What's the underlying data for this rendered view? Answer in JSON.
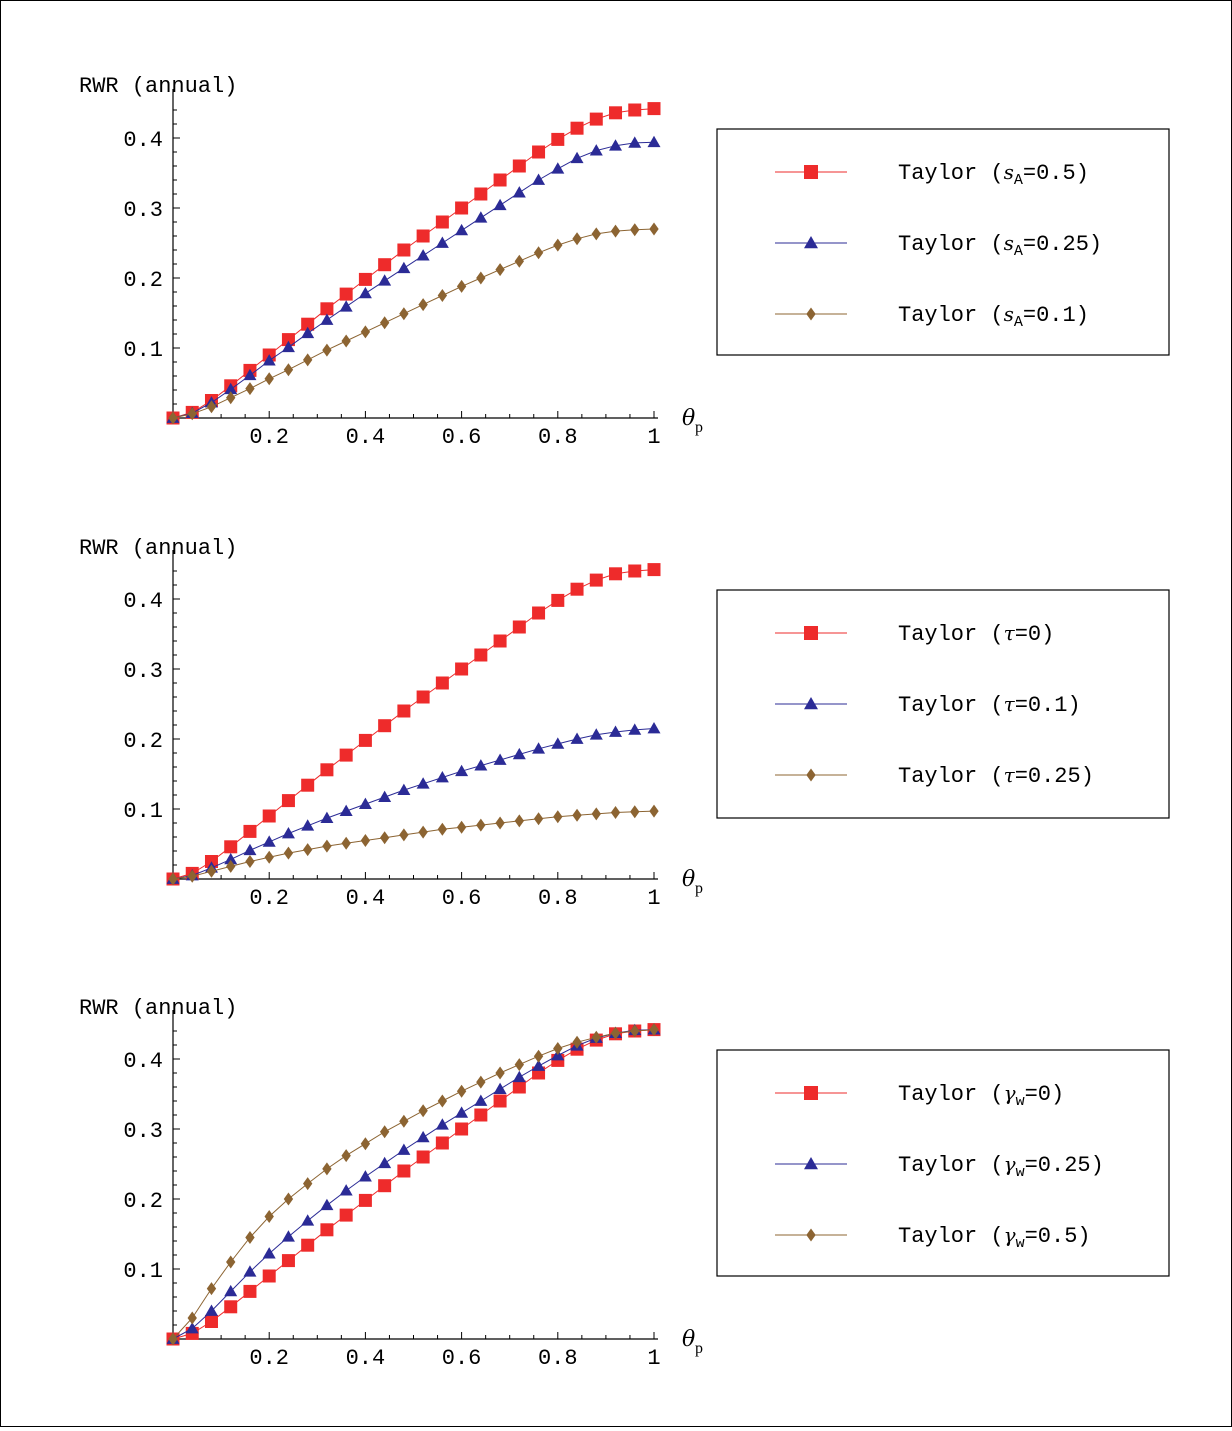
{
  "colors": {
    "series": [
      "#ee2b2b",
      "#2b2b96",
      "#8c6432"
    ],
    "axis": "#000000"
  },
  "markers": [
    "square",
    "triangle",
    "diamond"
  ],
  "chart_data": [
    {
      "type": "line",
      "ylabel": "RWR (annual)",
      "xlabel_symbol": "θ",
      "xlabel_sub": "p",
      "xlim": [
        0,
        1
      ],
      "ylim": [
        0,
        0.45
      ],
      "xticks": [
        "0.2",
        "0.4",
        "0.6",
        "0.8",
        "1"
      ],
      "yticks": [
        "0.1",
        "0.2",
        "0.3",
        "0.4"
      ],
      "x": [
        0,
        0.04,
        0.08,
        0.12,
        0.16,
        0.2,
        0.24,
        0.28,
        0.32,
        0.36,
        0.4,
        0.44,
        0.48,
        0.52,
        0.56,
        0.6,
        0.64,
        0.68,
        0.72,
        0.76,
        0.8,
        0.84,
        0.88,
        0.92,
        0.96,
        1.0
      ],
      "series": [
        {
          "legend_prefix": "Taylor (",
          "legend_symbol": "s",
          "legend_sub": "A",
          "legend_suffix": "=0.5)",
          "values": [
            0,
            0.008,
            0.025,
            0.046,
            0.068,
            0.09,
            0.112,
            0.134,
            0.156,
            0.177,
            0.198,
            0.219,
            0.24,
            0.26,
            0.28,
            0.3,
            0.32,
            0.34,
            0.36,
            0.38,
            0.398,
            0.414,
            0.427,
            0.436,
            0.44,
            0.442
          ]
        },
        {
          "legend_prefix": "Taylor (",
          "legend_symbol": "s",
          "legend_sub": "A",
          "legend_suffix": "=0.25)",
          "values": [
            0,
            0.007,
            0.022,
            0.041,
            0.061,
            0.082,
            0.101,
            0.121,
            0.14,
            0.159,
            0.178,
            0.196,
            0.214,
            0.232,
            0.25,
            0.268,
            0.286,
            0.304,
            0.322,
            0.34,
            0.356,
            0.371,
            0.382,
            0.389,
            0.393,
            0.394
          ]
        },
        {
          "legend_prefix": "Taylor (",
          "legend_symbol": "s",
          "legend_sub": "A",
          "legend_suffix": "=0.1)",
          "values": [
            0,
            0.006,
            0.016,
            0.029,
            0.042,
            0.056,
            0.069,
            0.083,
            0.097,
            0.11,
            0.123,
            0.136,
            0.149,
            0.162,
            0.175,
            0.188,
            0.2,
            0.212,
            0.224,
            0.236,
            0.247,
            0.256,
            0.263,
            0.267,
            0.269,
            0.27
          ]
        }
      ]
    },
    {
      "type": "line",
      "ylabel": "RWR (annual)",
      "xlabel_symbol": "θ",
      "xlabel_sub": "p",
      "xlim": [
        0,
        1
      ],
      "ylim": [
        0,
        0.45
      ],
      "xticks": [
        "0.2",
        "0.4",
        "0.6",
        "0.8",
        "1"
      ],
      "yticks": [
        "0.1",
        "0.2",
        "0.3",
        "0.4"
      ],
      "x": [
        0,
        0.04,
        0.08,
        0.12,
        0.16,
        0.2,
        0.24,
        0.28,
        0.32,
        0.36,
        0.4,
        0.44,
        0.48,
        0.52,
        0.56,
        0.6,
        0.64,
        0.68,
        0.72,
        0.76,
        0.8,
        0.84,
        0.88,
        0.92,
        0.96,
        1.0
      ],
      "series": [
        {
          "legend_prefix": "Taylor (",
          "legend_symbol": "τ",
          "legend_sub": "",
          "legend_suffix": "=0)",
          "values": [
            0,
            0.008,
            0.025,
            0.046,
            0.068,
            0.09,
            0.112,
            0.134,
            0.156,
            0.177,
            0.198,
            0.219,
            0.24,
            0.26,
            0.28,
            0.3,
            0.32,
            0.34,
            0.36,
            0.38,
            0.398,
            0.414,
            0.427,
            0.436,
            0.44,
            0.442
          ]
        },
        {
          "legend_prefix": "Taylor (",
          "legend_symbol": "τ",
          "legend_sub": "",
          "legend_suffix": "=0.1)",
          "values": [
            0,
            0.005,
            0.016,
            0.028,
            0.041,
            0.053,
            0.065,
            0.076,
            0.087,
            0.097,
            0.107,
            0.117,
            0.127,
            0.136,
            0.145,
            0.154,
            0.162,
            0.17,
            0.178,
            0.186,
            0.193,
            0.2,
            0.206,
            0.21,
            0.213,
            0.215
          ]
        },
        {
          "legend_prefix": "Taylor (",
          "legend_symbol": "τ",
          "legend_sub": "",
          "legend_suffix": "=0.25)",
          "values": [
            0,
            0.004,
            0.011,
            0.018,
            0.025,
            0.031,
            0.037,
            0.042,
            0.047,
            0.051,
            0.055,
            0.059,
            0.063,
            0.067,
            0.071,
            0.074,
            0.077,
            0.08,
            0.083,
            0.086,
            0.089,
            0.091,
            0.093,
            0.095,
            0.096,
            0.097
          ]
        }
      ]
    },
    {
      "type": "line",
      "ylabel": "RWR (annual)",
      "xlabel_symbol": "θ",
      "xlabel_sub": "p",
      "xlim": [
        0,
        1
      ],
      "ylim": [
        0,
        0.45
      ],
      "xticks": [
        "0.2",
        "0.4",
        "0.6",
        "0.8",
        "1"
      ],
      "yticks": [
        "0.1",
        "0.2",
        "0.3",
        "0.4"
      ],
      "x": [
        0,
        0.04,
        0.08,
        0.12,
        0.16,
        0.2,
        0.24,
        0.28,
        0.32,
        0.36,
        0.4,
        0.44,
        0.48,
        0.52,
        0.56,
        0.6,
        0.64,
        0.68,
        0.72,
        0.76,
        0.8,
        0.84,
        0.88,
        0.92,
        0.96,
        1.0
      ],
      "series": [
        {
          "legend_prefix": "Taylor (",
          "legend_symbol": "γ",
          "legend_sub": "w",
          "legend_suffix": "=0)",
          "values": [
            0,
            0.008,
            0.025,
            0.046,
            0.068,
            0.09,
            0.112,
            0.134,
            0.156,
            0.177,
            0.198,
            0.219,
            0.24,
            0.26,
            0.28,
            0.3,
            0.32,
            0.34,
            0.36,
            0.38,
            0.398,
            0.414,
            0.427,
            0.436,
            0.44,
            0.442
          ]
        },
        {
          "legend_prefix": "Taylor (",
          "legend_symbol": "γ",
          "legend_sub": "w",
          "legend_suffix": "=0.25)",
          "values": [
            0,
            0.015,
            0.04,
            0.068,
            0.096,
            0.122,
            0.146,
            0.169,
            0.191,
            0.212,
            0.232,
            0.251,
            0.27,
            0.288,
            0.306,
            0.323,
            0.34,
            0.357,
            0.374,
            0.39,
            0.405,
            0.419,
            0.43,
            0.437,
            0.441,
            0.442
          ]
        },
        {
          "legend_prefix": "Taylor (",
          "legend_symbol": "γ",
          "legend_sub": "w",
          "legend_suffix": "=0.5)",
          "values": [
            0,
            0.03,
            0.072,
            0.11,
            0.145,
            0.175,
            0.2,
            0.222,
            0.243,
            0.262,
            0.279,
            0.296,
            0.311,
            0.326,
            0.34,
            0.354,
            0.367,
            0.38,
            0.392,
            0.404,
            0.415,
            0.424,
            0.431,
            0.437,
            0.44,
            0.442
          ]
        }
      ]
    }
  ]
}
